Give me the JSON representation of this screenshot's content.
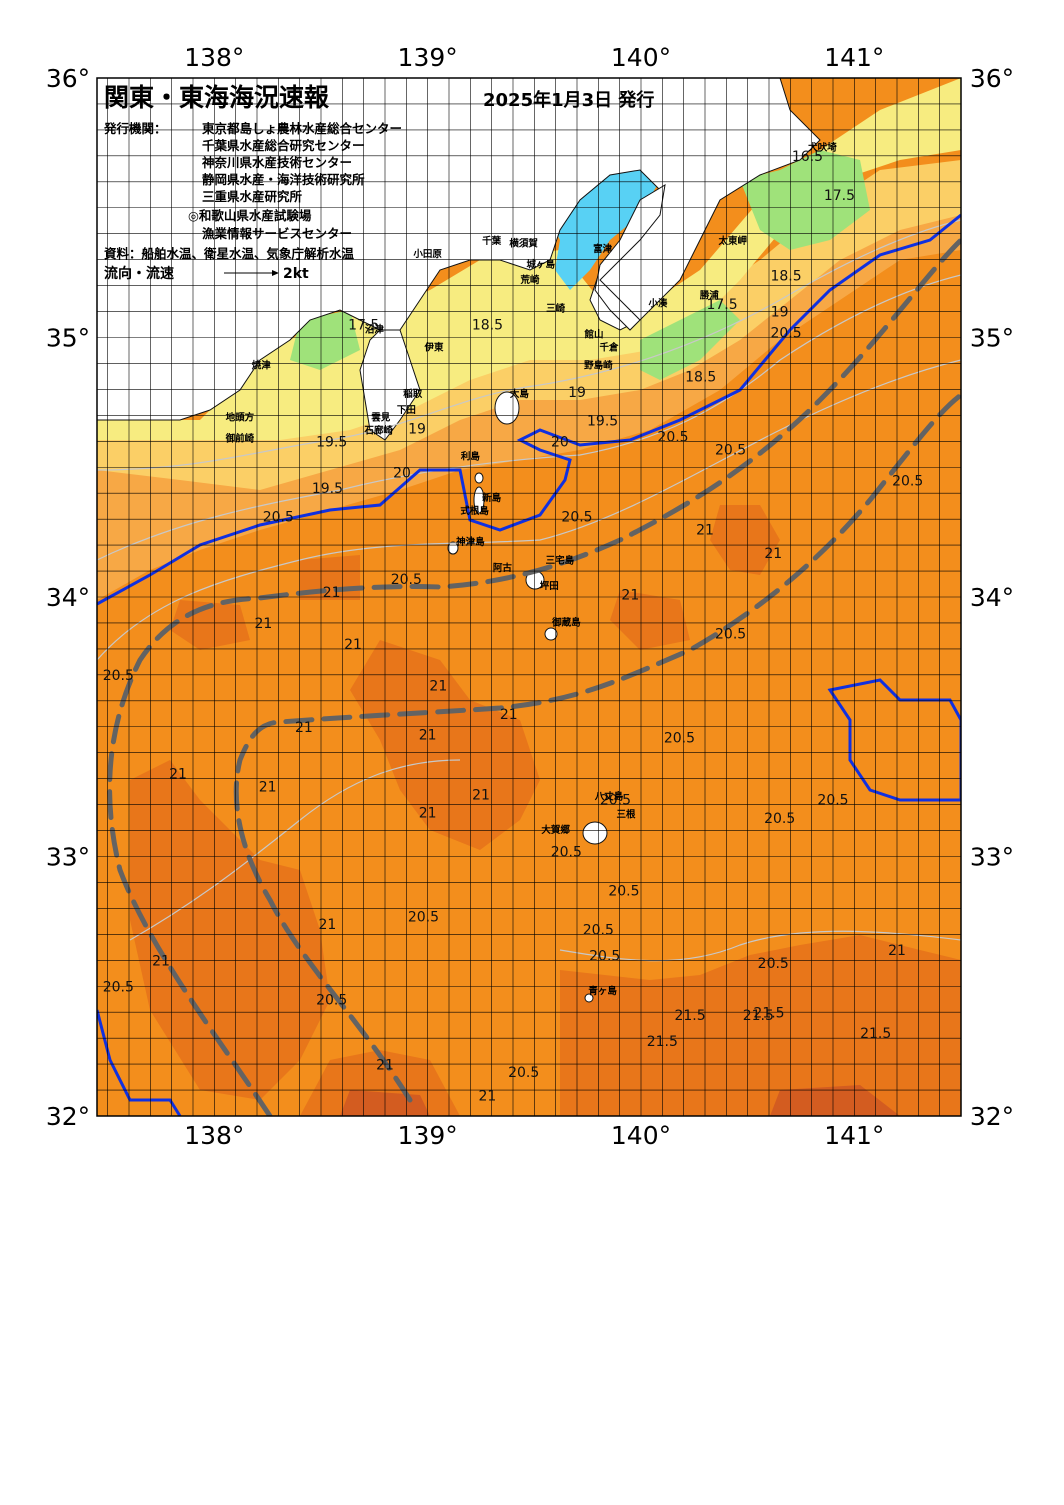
{
  "title": "関東・東海海況速報",
  "issue_date": "2025年1月3日 発行",
  "publishers_heading": "発行機関：",
  "publishers": [
    "東京都島しょ農林水産総合センター",
    "千葉県水産総合研究センター",
    "神奈川県水産技術センター",
    "静岡県水産・海洋技術研究所",
    "三重県水産研究所",
    "◎和歌山県水産試験場",
    "漁業情報サービスセンター"
  ],
  "sources": "資料：船舶水温、衛星水温、気象庁解析水温",
  "legend": {
    "label": "流向・流速",
    "scale_label": "2kt"
  },
  "axes": {
    "lon_labels": [
      "138°",
      "139°",
      "140°",
      "141°"
    ],
    "lat_labels": [
      "36°",
      "35°",
      "34°",
      "33°",
      "32°"
    ],
    "lon_values": [
      138,
      139,
      140,
      141
    ],
    "lat_values": [
      36,
      35,
      34,
      33,
      32
    ],
    "lon_range": [
      137.45,
      141.5
    ],
    "lat_range": [
      32,
      36
    ]
  },
  "colors": {
    "water_warm": "#f38e1c",
    "water_warmer": "#e8761a",
    "water_warmest": "#d35c20",
    "water_cool_orange": "#f7a845",
    "water_yellow": "#fbcf66",
    "water_pale_yellow": "#f7ec80",
    "water_green": "#9fe27a",
    "water_bay": "#58d1f4",
    "land": "#ffffff",
    "kuroshio": "#636363",
    "front": "#1030e0"
  },
  "places": [
    {
      "name": "犬吠埼",
      "lon": 140.85,
      "lat": 35.72
    },
    {
      "name": "太東岬",
      "lon": 140.43,
      "lat": 35.36
    },
    {
      "name": "勝浦",
      "lon": 140.32,
      "lat": 35.15
    },
    {
      "name": "小湊",
      "lon": 140.08,
      "lat": 35.12
    },
    {
      "name": "千葉",
      "lon": 139.3,
      "lat": 35.36
    },
    {
      "name": "横須賀",
      "lon": 139.45,
      "lat": 35.35
    },
    {
      "name": "富津",
      "lon": 139.82,
      "lat": 35.33
    },
    {
      "name": "館山",
      "lon": 139.78,
      "lat": 35.0
    },
    {
      "name": "千倉",
      "lon": 139.85,
      "lat": 34.95
    },
    {
      "name": "野島崎",
      "lon": 139.8,
      "lat": 34.88
    },
    {
      "name": "小田原",
      "lon": 139.0,
      "lat": 35.31
    },
    {
      "name": "城ヶ島",
      "lon": 139.53,
      "lat": 35.27
    },
    {
      "name": "荒崎",
      "lon": 139.48,
      "lat": 35.21
    },
    {
      "name": "三崎",
      "lon": 139.6,
      "lat": 35.1
    },
    {
      "name": "沼津",
      "lon": 138.75,
      "lat": 35.02
    },
    {
      "name": "焼津",
      "lon": 138.22,
      "lat": 34.88
    },
    {
      "name": "伊東",
      "lon": 139.03,
      "lat": 34.95
    },
    {
      "name": "稲取",
      "lon": 138.93,
      "lat": 34.77
    },
    {
      "name": "下田",
      "lon": 138.9,
      "lat": 34.71
    },
    {
      "name": "雲見",
      "lon": 138.78,
      "lat": 34.68
    },
    {
      "name": "石廊崎",
      "lon": 138.77,
      "lat": 34.63
    },
    {
      "name": "地頭方",
      "lon": 138.12,
      "lat": 34.68
    },
    {
      "name": "御前崎",
      "lon": 138.12,
      "lat": 34.6
    },
    {
      "name": "大島",
      "lon": 139.43,
      "lat": 34.77
    },
    {
      "name": "利島",
      "lon": 139.2,
      "lat": 34.53
    },
    {
      "name": "新島",
      "lon": 139.3,
      "lat": 34.37
    },
    {
      "name": "式根島",
      "lon": 139.22,
      "lat": 34.32
    },
    {
      "name": "神津島",
      "lon": 139.2,
      "lat": 34.2
    },
    {
      "name": "三宅島",
      "lon": 139.62,
      "lat": 34.13
    },
    {
      "name": "阿古",
      "lon": 139.35,
      "lat": 34.1
    },
    {
      "name": "坪田",
      "lon": 139.57,
      "lat": 34.03
    },
    {
      "name": "御蔵島",
      "lon": 139.65,
      "lat": 33.89
    },
    {
      "name": "八丈島",
      "lon": 139.85,
      "lat": 33.22
    },
    {
      "name": "三根",
      "lon": 139.93,
      "lat": 33.15
    },
    {
      "name": "大賀郷",
      "lon": 139.6,
      "lat": 33.09
    },
    {
      "name": "青ヶ島",
      "lon": 139.82,
      "lat": 32.47
    }
  ],
  "contour_labels": [
    {
      "text": "16.5",
      "lon": 140.78,
      "lat": 35.68
    },
    {
      "text": "17.5",
      "lon": 140.93,
      "lat": 35.53
    },
    {
      "text": "18.5",
      "lon": 140.68,
      "lat": 35.22
    },
    {
      "text": "17.5",
      "lon": 140.38,
      "lat": 35.11
    },
    {
      "text": "19",
      "lon": 140.65,
      "lat": 35.08
    },
    {
      "text": "20.5",
      "lon": 140.68,
      "lat": 35.0
    },
    {
      "text": "18.5",
      "lon": 140.28,
      "lat": 34.83
    },
    {
      "text": "18.5",
      "lon": 139.28,
      "lat": 35.03
    },
    {
      "text": "17.5",
      "lon": 138.7,
      "lat": 35.03
    },
    {
      "text": "19",
      "lon": 139.7,
      "lat": 34.77
    },
    {
      "text": "19.5",
      "lon": 139.82,
      "lat": 34.66
    },
    {
      "text": "20",
      "lon": 139.62,
      "lat": 34.58
    },
    {
      "text": "20.5",
      "lon": 140.15,
      "lat": 34.6
    },
    {
      "text": "20.5",
      "lon": 140.42,
      "lat": 34.55
    },
    {
      "text": "20.5",
      "lon": 141.25,
      "lat": 34.43
    },
    {
      "text": "19",
      "lon": 138.95,
      "lat": 34.63
    },
    {
      "text": "19.5",
      "lon": 138.55,
      "lat": 34.58
    },
    {
      "text": "20",
      "lon": 138.88,
      "lat": 34.46
    },
    {
      "text": "19.5",
      "lon": 138.53,
      "lat": 34.4
    },
    {
      "text": "20.5",
      "lon": 138.3,
      "lat": 34.29
    },
    {
      "text": "20.5",
      "lon": 139.7,
      "lat": 34.29
    },
    {
      "text": "21",
      "lon": 140.3,
      "lat": 34.24
    },
    {
      "text": "21",
      "lon": 140.62,
      "lat": 34.15
    },
    {
      "text": "21",
      "lon": 138.55,
      "lat": 34.0
    },
    {
      "text": "20.5",
      "lon": 138.9,
      "lat": 34.05
    },
    {
      "text": "21",
      "lon": 139.95,
      "lat": 33.99
    },
    {
      "text": "21",
      "lon": 138.23,
      "lat": 33.88
    },
    {
      "text": "21",
      "lon": 138.65,
      "lat": 33.8
    },
    {
      "text": "20.5",
      "lon": 140.42,
      "lat": 33.84
    },
    {
      "text": "20.5",
      "lon": 137.55,
      "lat": 33.68
    },
    {
      "text": "21",
      "lon": 139.05,
      "lat": 33.64
    },
    {
      "text": "21",
      "lon": 139.38,
      "lat": 33.53
    },
    {
      "text": "21",
      "lon": 138.42,
      "lat": 33.48
    },
    {
      "text": "21",
      "lon": 139.0,
      "lat": 33.45
    },
    {
      "text": "20.5",
      "lon": 140.18,
      "lat": 33.44
    },
    {
      "text": "21",
      "lon": 137.83,
      "lat": 33.3
    },
    {
      "text": "21",
      "lon": 138.25,
      "lat": 33.25
    },
    {
      "text": "21",
      "lon": 139.25,
      "lat": 33.22
    },
    {
      "text": "20.5",
      "lon": 139.88,
      "lat": 33.2
    },
    {
      "text": "21",
      "lon": 139.0,
      "lat": 33.15
    },
    {
      "text": "20.5",
      "lon": 140.9,
      "lat": 33.2
    },
    {
      "text": "20.5",
      "lon": 140.65,
      "lat": 33.13
    },
    {
      "text": "20.5",
      "lon": 139.65,
      "lat": 33.0
    },
    {
      "text": "20.5",
      "lon": 139.92,
      "lat": 32.85
    },
    {
      "text": "20.5",
      "lon": 138.98,
      "lat": 32.75
    },
    {
      "text": "21",
      "lon": 138.53,
      "lat": 32.72
    },
    {
      "text": "20.5",
      "lon": 139.8,
      "lat": 32.7
    },
    {
      "text": "20.5",
      "lon": 139.83,
      "lat": 32.6
    },
    {
      "text": "21",
      "lon": 141.2,
      "lat": 32.62
    },
    {
      "text": "21",
      "lon": 137.75,
      "lat": 32.58
    },
    {
      "text": "20.5",
      "lon": 137.55,
      "lat": 32.48
    },
    {
      "text": "20.5",
      "lon": 140.62,
      "lat": 32.57
    },
    {
      "text": "21.5",
      "lon": 140.23,
      "lat": 32.37
    },
    {
      "text": "21.5",
      "lon": 140.55,
      "lat": 32.37
    },
    {
      "text": "21.5",
      "lon": 140.6,
      "lat": 32.38
    },
    {
      "text": "21.5",
      "lon": 141.1,
      "lat": 32.3
    },
    {
      "text": "20.5",
      "lon": 138.55,
      "lat": 32.43
    },
    {
      "text": "21.5",
      "lon": 140.1,
      "lat": 32.27
    },
    {
      "text": "21",
      "lon": 138.8,
      "lat": 32.18
    },
    {
      "text": "20.5",
      "lon": 139.45,
      "lat": 32.15
    },
    {
      "text": "21",
      "lon": 139.28,
      "lat": 32.06
    }
  ]
}
